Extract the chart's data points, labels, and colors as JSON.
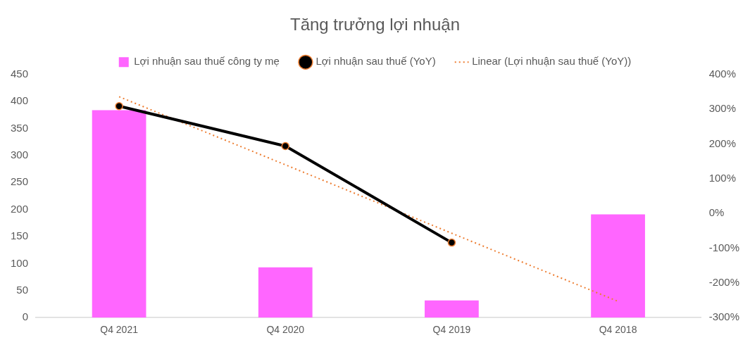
{
  "chart_data": {
    "type": "bar",
    "title": "Tăng trưởng lợi nhuận",
    "categories": [
      "Q4 2021",
      "Q4 2020",
      "Q4 2019",
      "Q4 2018"
    ],
    "series": [
      {
        "name": "Lợi nhuận sau thuế công ty mẹ",
        "color": "#ff66ff",
        "values": [
          384,
          93,
          32,
          191
        ]
      },
      {
        "name": "Lợi nhuận sau thuế (YoY)",
        "type": "line",
        "axis": "y2",
        "color": "#000000",
        "marker": "circle",
        "line_style": "solid",
        "values": [
          309,
          194,
          -84,
          null
        ]
      },
      {
        "name": "Linear (Lợi nhuận sau thuế (YoY))",
        "type": "line",
        "axis": "y2",
        "color": "#ed7d31",
        "marker": "none",
        "line_style": "dotted",
        "values": [
          336,
          140,
          -57,
          -253
        ]
      }
    ],
    "ylim": [
      0,
      450
    ],
    "yticks": [
      0,
      50,
      100,
      150,
      200,
      250,
      300,
      350,
      400,
      450
    ],
    "y2lim": [
      -300,
      400
    ],
    "y2ticks": [
      {
        "value": -300,
        "label": "-300%"
      },
      {
        "value": -200,
        "label": "-200%"
      },
      {
        "value": -100,
        "label": "-100%"
      },
      {
        "value": 0,
        "label": "0%"
      },
      {
        "value": 100,
        "label": "100%"
      },
      {
        "value": 200,
        "label": "200%"
      },
      {
        "value": 300,
        "label": "300%"
      },
      {
        "value": 400,
        "label": "400%"
      }
    ],
    "grid": false,
    "legend": "top"
  }
}
